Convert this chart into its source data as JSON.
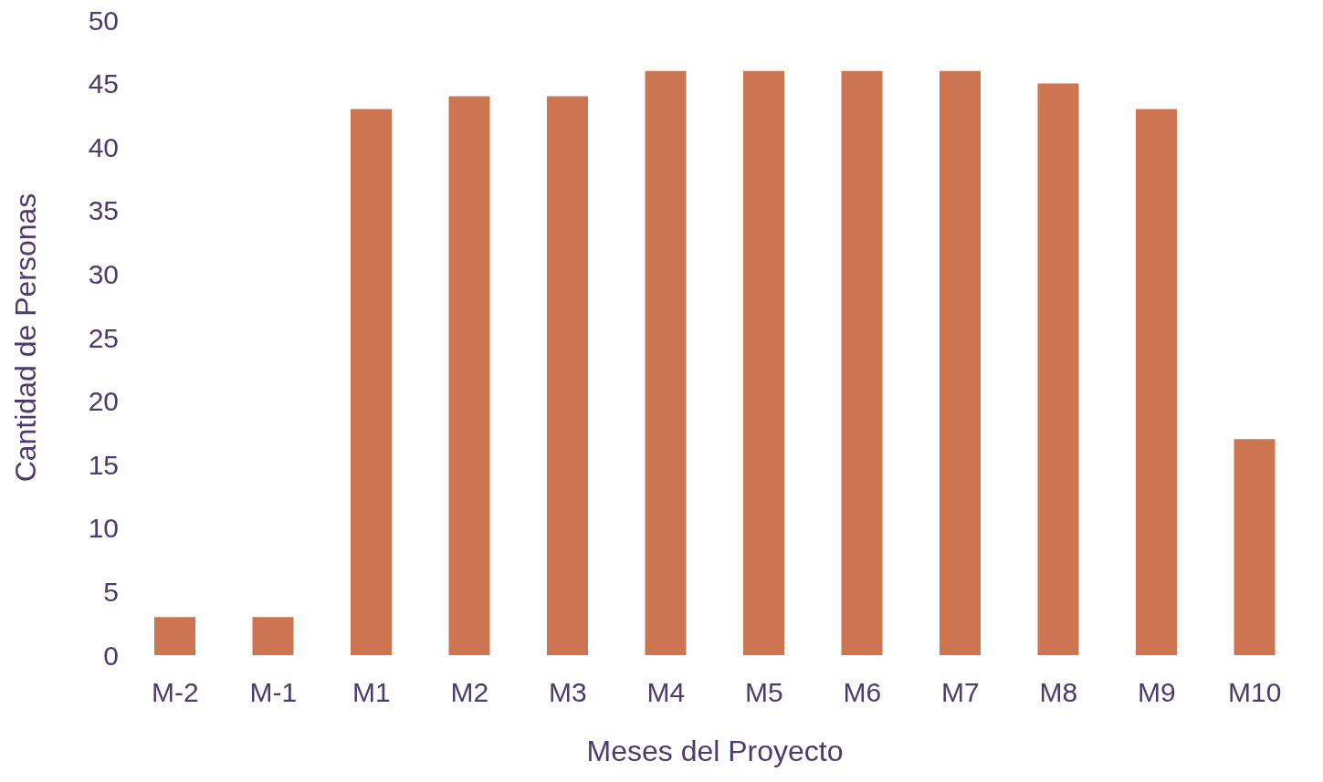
{
  "chart_data": {
    "type": "bar",
    "xlabel": "Meses del Proyecto",
    "ylabel": "Cantidad de Personas",
    "categories": [
      "M-2",
      "M-1",
      "M1",
      "M2",
      "M3",
      "M4",
      "M5",
      "M6",
      "M7",
      "M8",
      "M9",
      "M10"
    ],
    "values": [
      3,
      3,
      43,
      44,
      44,
      46,
      46,
      46,
      46,
      45,
      43,
      17
    ],
    "color": "#cd7550",
    "ylim": [
      0,
      50
    ],
    "yticks": [
      0,
      5,
      10,
      15,
      20,
      25,
      30,
      35,
      40,
      45,
      50
    ],
    "grid": false,
    "legend": false
  }
}
